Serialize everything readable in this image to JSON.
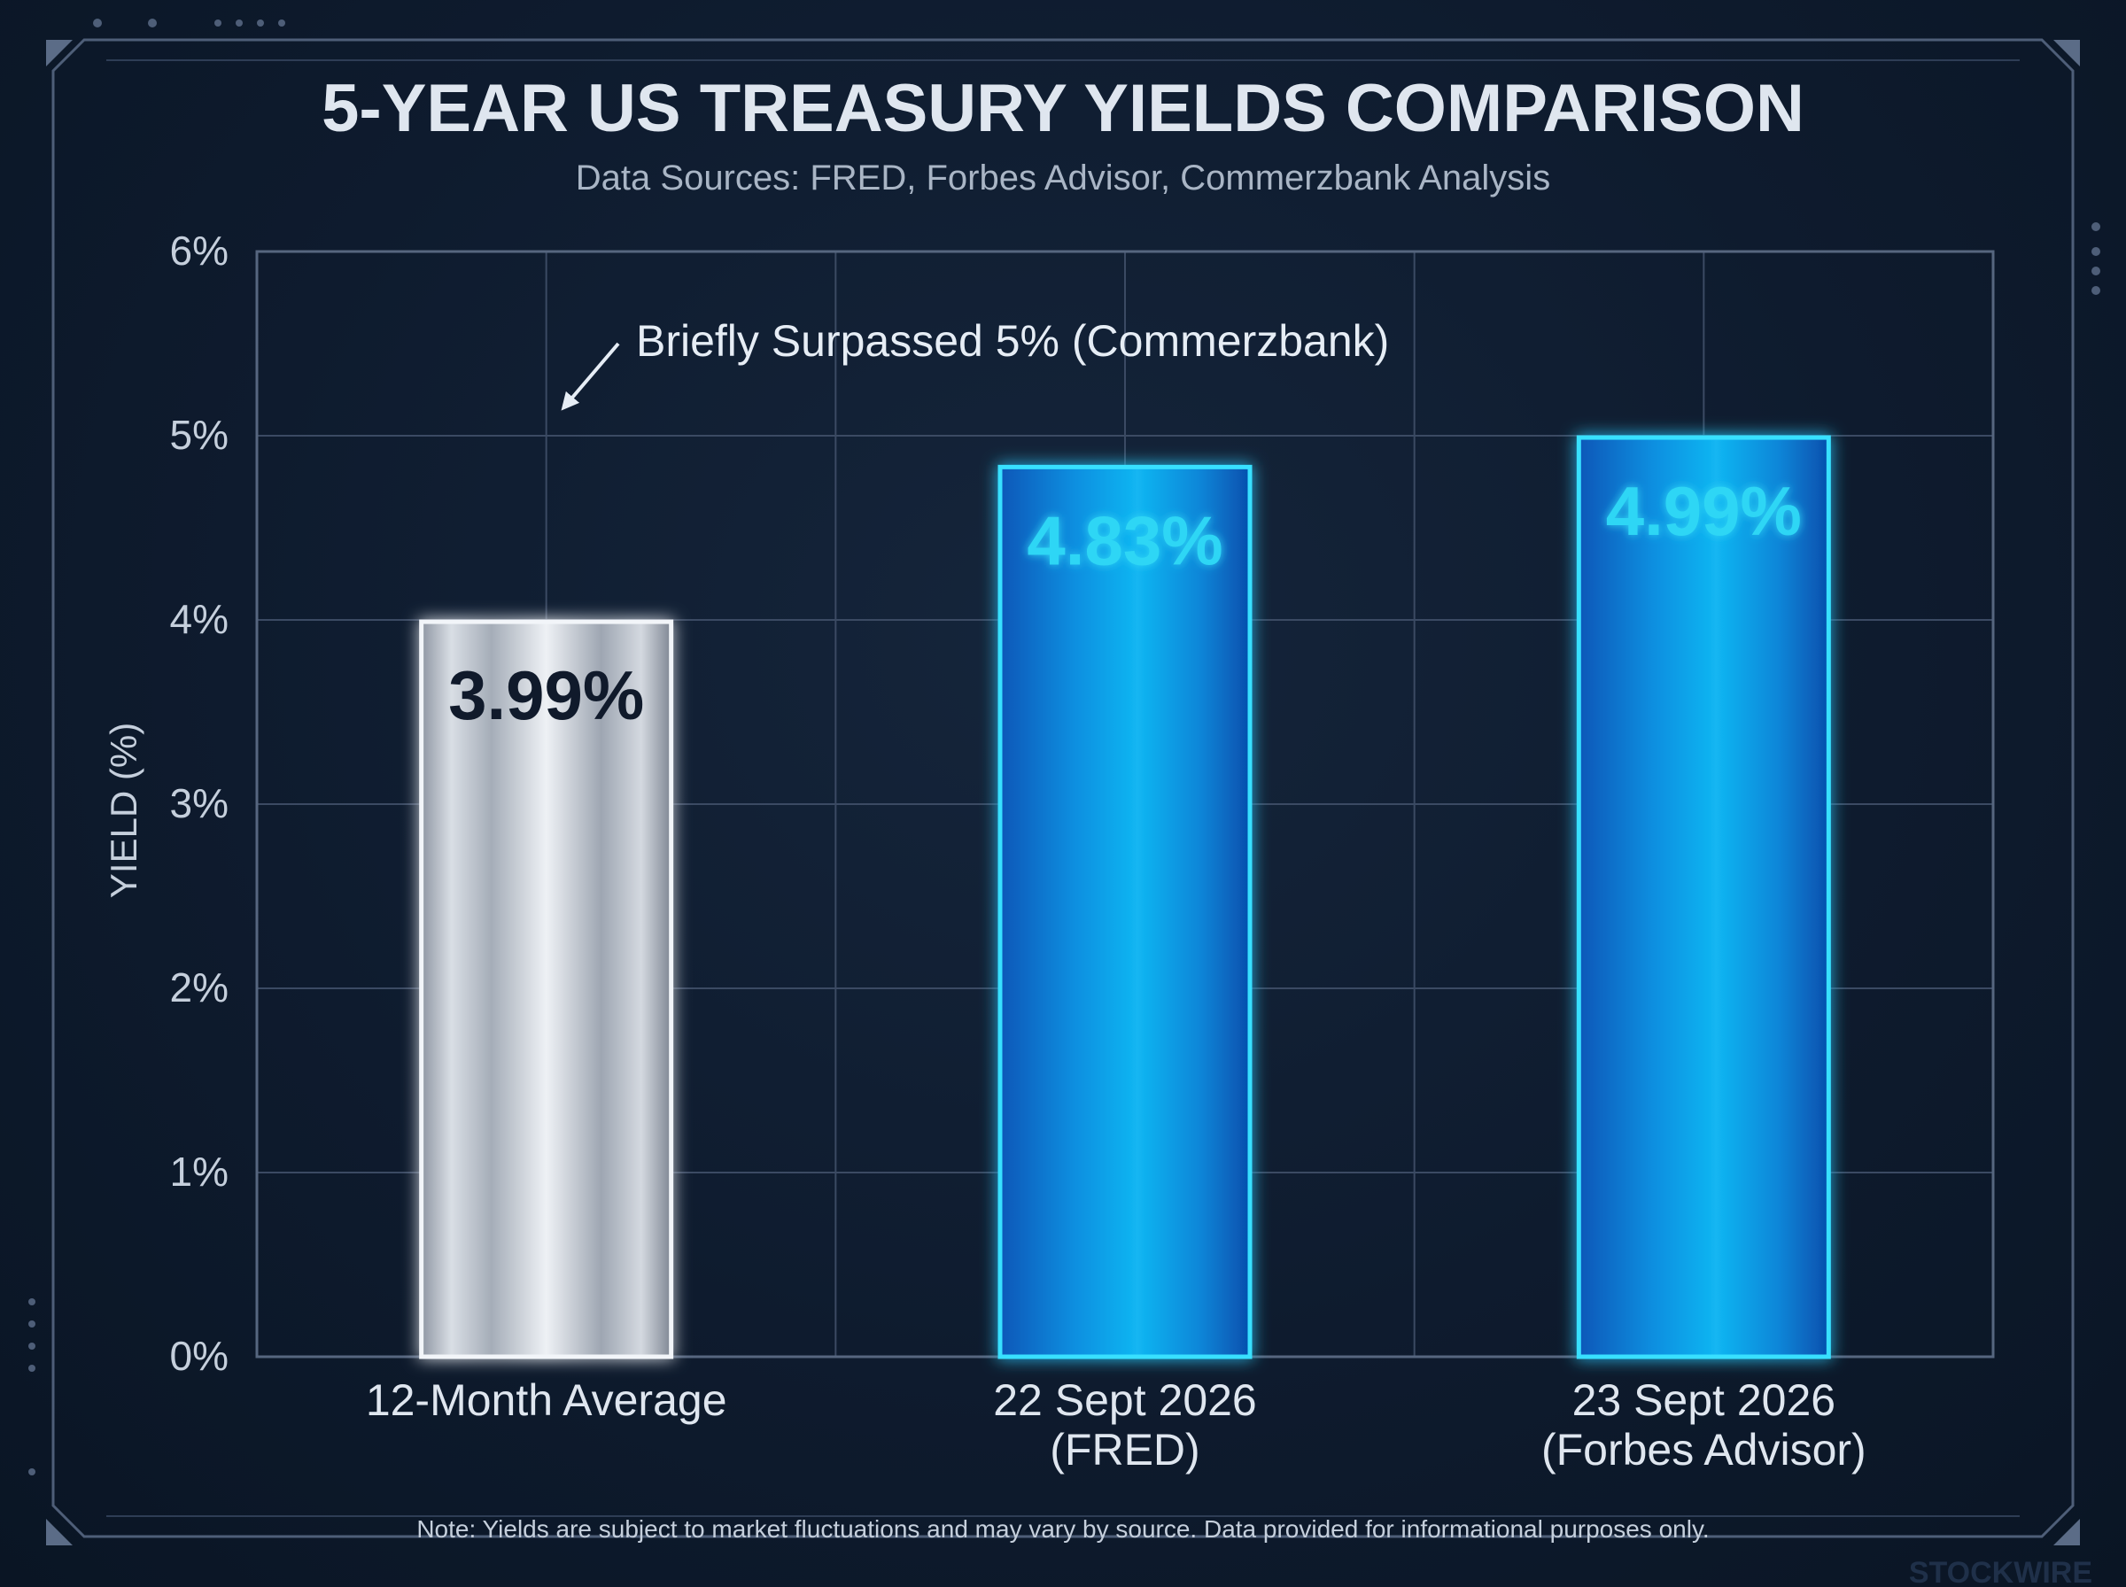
{
  "chart_data": {
    "type": "bar",
    "title": "5-YEAR US TREASURY YIELDS COMPARISON",
    "subtitle": "Data Sources: FRED, Forbes Advisor, Commerzbank Analysis",
    "ylabel": "YIELD (%)",
    "xlabel": "",
    "ylim": [
      0,
      6
    ],
    "yticks": [
      0,
      1,
      2,
      3,
      4,
      5,
      6
    ],
    "ytick_labels": [
      "0%",
      "1%",
      "2%",
      "3%",
      "4%",
      "5%",
      "6%"
    ],
    "grid": true,
    "categories": [
      [
        "12-Month Average"
      ],
      [
        "22 Sept 2026",
        "(FRED)"
      ],
      [
        "23 Sept 2026",
        "(Forbes Advisor)"
      ]
    ],
    "values": [
      3.99,
      4.83,
      4.99
    ],
    "data_labels": [
      "3.99%",
      "4.83%",
      "4.99%"
    ],
    "bar_styles": [
      "silver",
      "blue",
      "blue"
    ],
    "up_arrows": [
      false,
      true,
      true
    ],
    "reference_line": {
      "value": 5,
      "label": "Briefly Surpassed 5% (Commerzbank)",
      "style": "dashed"
    },
    "note": "Note: Yields are subject to market fluctuations and may vary by source. Data provided for informational purposes only.",
    "watermark": "STOCKWIRE",
    "colors": {
      "background": "#0e1b2e",
      "grid": "#3b4a63",
      "blue_bar": "#0a8fe0",
      "blue_edge": "#38e0ff",
      "blue_label": "#2fd6f5",
      "silver_bar": "#c8ced6",
      "silver_label": "#101a2b",
      "reference_line": "#bff3ff",
      "text": "#dfe6ef",
      "frame": "#5a6b85"
    }
  }
}
